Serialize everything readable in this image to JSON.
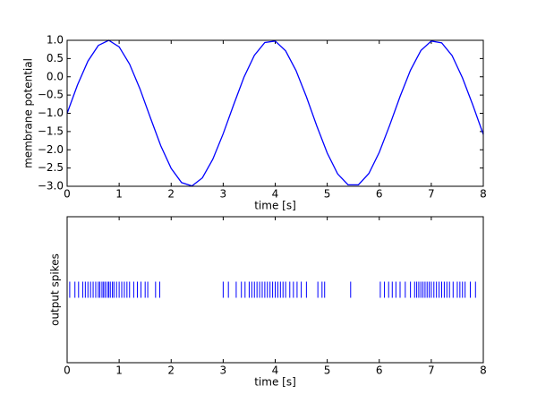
{
  "chart_data": [
    {
      "type": "line",
      "xlabel": "time [s]",
      "ylabel": "membrane potential",
      "x": [
        0,
        0.2,
        0.4,
        0.6,
        0.8,
        1.0,
        1.2,
        1.4,
        1.6,
        1.8,
        2.0,
        2.2,
        2.4,
        2.6,
        2.8,
        3.0,
        3.2,
        3.4,
        3.6,
        3.8,
        4.0,
        4.2,
        4.4,
        4.6,
        4.8,
        5.0,
        5.2,
        5.4,
        5.6,
        5.8,
        6.0,
        6.2,
        6.4,
        6.6,
        6.8,
        7.0,
        7.2,
        7.4,
        7.6,
        7.8,
        8.0
      ],
      "series": [
        {
          "color": "#0000ff",
          "values": [
            -1,
            -0.22,
            0.43,
            0.86,
            1.0,
            0.82,
            0.35,
            -0.33,
            -1.12,
            -1.89,
            -2.51,
            -2.9,
            -2.99,
            -2.77,
            -2.26,
            -1.56,
            -0.77,
            -0.01,
            0.59,
            0.94,
            0.98,
            0.71,
            0.17,
            -0.55,
            -1.35,
            -2.09,
            -2.66,
            -2.96,
            -2.96,
            -2.65,
            -2.07,
            -1.33,
            -0.54,
            0.18,
            0.72,
            0.98,
            0.93,
            0.58,
            -0.03,
            -0.78,
            -1.58
          ]
        }
      ],
      "xlim": [
        0,
        8
      ],
      "xticks": [
        0,
        1,
        2,
        3,
        4,
        5,
        6,
        7,
        8
      ],
      "ylim": [
        -3,
        1
      ],
      "yticks": [
        {
          "value": -3,
          "label": "−3.0"
        },
        {
          "value": -2.5,
          "label": "−2.5"
        },
        {
          "value": -2,
          "label": "−2.0"
        },
        {
          "value": -1.5,
          "label": "−1.5"
        },
        {
          "value": -1,
          "label": "−1.0"
        },
        {
          "value": -0.5,
          "label": "−0.5"
        },
        {
          "value": 0,
          "label": "0.0"
        },
        {
          "value": 0.5,
          "label": "0.5"
        },
        {
          "value": 1,
          "label": "1.0"
        }
      ]
    },
    {
      "type": "event",
      "xlabel": "time [s]",
      "ylabel": "output spikes",
      "series": [
        {
          "color": "#0000ff",
          "values": [
            0.05,
            0.15,
            0.22,
            0.3,
            0.35,
            0.4,
            0.45,
            0.5,
            0.55,
            0.6,
            0.63,
            0.67,
            0.7,
            0.73,
            0.77,
            0.8,
            0.83,
            0.87,
            0.9,
            0.95,
            1.0,
            1.05,
            1.1,
            1.15,
            1.2,
            1.28,
            1.35,
            1.42,
            1.5,
            1.55,
            1.7,
            1.78,
            3.0,
            3.1,
            3.25,
            3.35,
            3.42,
            3.5,
            3.55,
            3.6,
            3.65,
            3.7,
            3.75,
            3.8,
            3.85,
            3.9,
            3.95,
            4.0,
            4.05,
            4.1,
            4.15,
            4.2,
            4.28,
            4.35,
            4.42,
            4.5,
            4.6,
            4.82,
            4.9,
            4.95,
            5.45,
            6.02,
            6.1,
            6.18,
            6.25,
            6.32,
            6.4,
            6.5,
            6.6,
            6.68,
            6.72,
            6.76,
            6.8,
            6.84,
            6.88,
            6.92,
            6.96,
            7.0,
            7.05,
            7.1,
            7.15,
            7.2,
            7.25,
            7.3,
            7.35,
            7.42,
            7.5,
            7.55,
            7.6,
            7.65,
            7.75,
            7.85
          ]
        }
      ],
      "xlim": [
        0,
        8
      ],
      "xticks": [
        0,
        1,
        2,
        3,
        4,
        5,
        6,
        7,
        8
      ]
    }
  ]
}
